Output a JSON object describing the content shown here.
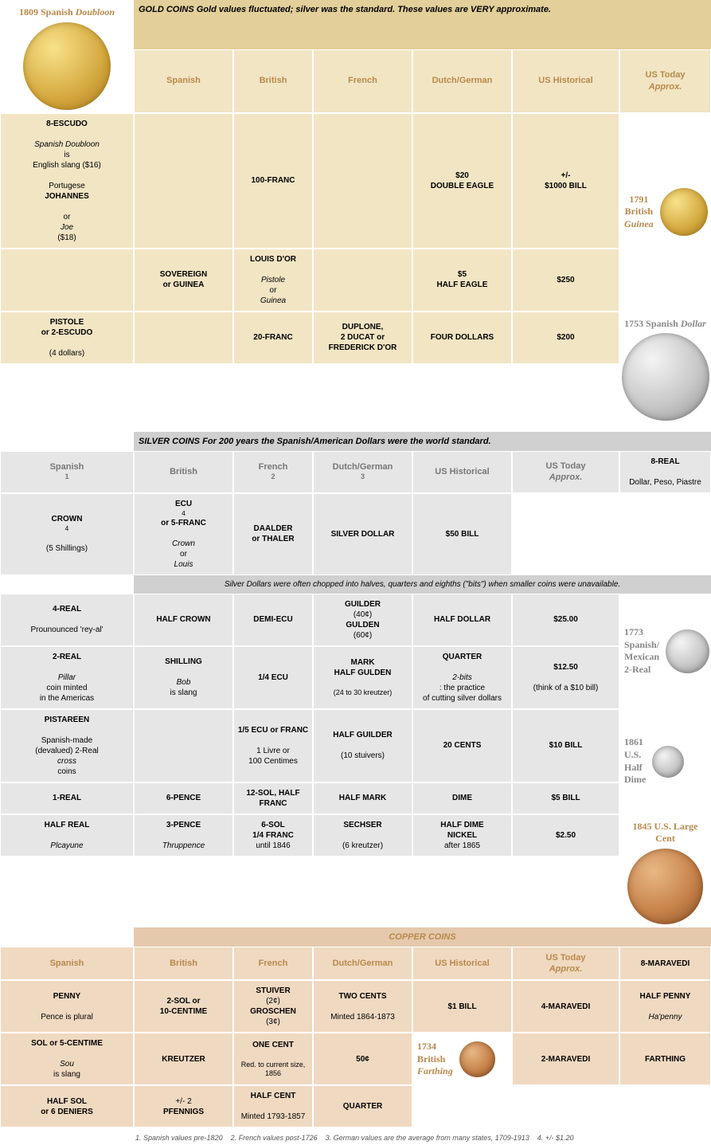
{
  "cols": [
    "Spanish",
    "British",
    "French",
    "Dutch/German",
    "US Historical",
    "US Today <span class='i'>Approx.</span>"
  ],
  "gold": {
    "title": "<span class='b'>GOLD COINS</span> <span class='i'>Gold values fluctuated; silver was the standard. These values are VERY approximate.</span>",
    "coins": [
      {
        "label": "1809 Spanish <span class='ital'>Doubloon</span>",
        "size": 110,
        "cls": "gold-coin"
      },
      {
        "label": "1791<br>British<br><span class='ital'>Guinea</span>",
        "size": 60,
        "cls": "gold-coin"
      }
    ],
    "rows": [
      [
        "<span class='b'>8-ESCUDO</span><br><span class='i'>Spanish Doubloon</span> is<br>English slang ($16)<br><br>Portugese <span class='b'>JOHANNES</span><br>or <span class='i'>Joe</span> ($18)",
        "",
        "<span class='b'>100-FRANC</span>",
        "",
        "<span class='b'>$20<br>DOUBLE EAGLE</span>",
        "<span class='b'>+/-<br>$1000 BILL</span>"
      ],
      [
        "",
        "<span class='b'>SOVEREIGN<br>or GUINEA</span>",
        "<span class='b'>LOUIS D'OR</span><br><span class='i'>Pistole</span> or <span class='i'>Guinea</span>",
        "",
        "<span class='b'>$5<br>HALF EAGLE</span>",
        "<span class='b'>$250</span>"
      ],
      [
        "<span class='b'>PISTOLE<br>or 2-ESCUDO</span><br>(4 dollars)",
        "",
        "<span class='b'>20-FRANC</span>",
        "<span class='b'>DUPLONE,<br>2 DUCAT or<br>FREDERICK D'OR</span>",
        "<span class='b'>FOUR DOLLARS</span>",
        "<span class='b'>$200</span>"
      ]
    ]
  },
  "silver": {
    "title": "<span class='b'>SILVER COINS</span> <span class='i'>For 200 years the Spanish/American Dollars were the world standard.</span>",
    "cols": [
      "Spanish<sup>1</sup>",
      "British",
      "French<sup>2</sup>",
      "Dutch/German<sup>3</sup>",
      "US Historical",
      "US Today <span class='i'>Approx.</span>"
    ],
    "note": "Silver Dollars were often chopped into halves, quarters and eighths (\"bits\") when smaller coins were unavailable.",
    "coins": [
      {
        "label": "1753 Spanish <span class='ital'>Dollar</span>",
        "size": 110,
        "cls": "silver-coin"
      },
      {
        "label": "1773<br>Spanish/<br>Mexican<br>2-Real",
        "size": 55,
        "cls": "silver-coin",
        "side": true
      },
      {
        "label": "1861<br>U.S.<br>Half<br>Dime",
        "size": 40,
        "cls": "silver-coin",
        "side": true
      }
    ],
    "rows": [
      [
        "<span class='b'>8-REAL</span><br>Dollar, Peso, Piastre",
        "<span class='b'>CROWN</span><sup>4</sup><br>(5 Shillings)",
        "<span class='b'>ECU</span><sup>4</sup> <span class='b'>or 5-FRANC</span><br><span class='i'>Crown</span> or <span class='i'>Louis</span>",
        "<span class='b'>DAALDER<br>or THALER</span>",
        "<span class='b'>SILVER DOLLAR</span>",
        "<span class='b'>$50 BILL</span>"
      ],
      [
        "<span class='b'>4-REAL</span><br>Prounounced 'rey-al'",
        "<span class='b'>HALF CROWN</span>",
        "<span class='b'>DEMI-ECU</span>",
        "<span class='b'>GUILDER</span> (40¢)<br><span class='b'>GULDEN</span> (60¢)",
        "<span class='b'>HALF DOLLAR</span>",
        "<span class='b'>$25.00</span>"
      ],
      [
        "<span class='b'>2-REAL</span><br><span class='i'>Pillar</span> coin minted<br>in the Americas",
        "<span class='b'>SHILLING</span><br><span class='i'>Bob</span> is slang",
        "<span class='b'>1/4 ECU</span>",
        "<span class='b'>MARK<br>HALF GULDEN</span><br><span class='small'>(24 to 30 kreutzer)</span>",
        "<span class='b'>QUARTER</span><br><span class='i'>2-bits</span>: the practice<br>of cutting silver dollars",
        "<span class='b'>$12.50</span><br>(think of a $10 bill)"
      ],
      [
        "<span class='b'>PISTAREEN</span><br>Spanish-made<br>(devalued) 2-Real<br><span class='i'>cross</span> coins",
        "",
        "<span class='b'>1/5 ECU or FRANC</span><br>1 Livre or<br>100 Centimes",
        "<span class='b'>HALF GUILDER</span><br>(10 stuivers)",
        "<span class='b'>20 CENTS</span>",
        "<span class='b'>$10 BILL</span>"
      ],
      [
        "<span class='b'>1-REAL</span>",
        "<span class='b'>6-PENCE</span>",
        "<span class='b'>12-SOL, HALF FRANC</span>",
        "<span class='b'>HALF MARK</span>",
        "<span class='b'>DIME</span>",
        "<span class='b'>$5 BILL</span>"
      ],
      [
        "<span class='b'>HALF REAL</span><br><span class='i'>Plcayune</span>",
        "<span class='b'>3-PENCE</span><br><span class='i'>Thruppence</span>",
        "<span class='b'>6-SOL<br>1/4 FRANC</span> until 1846",
        "<span class='b'>SECHSER</span><br>(6 kreutzer)",
        "<span class='b'>HALF DIME<br>NICKEL</span> after 1865",
        "<span class='b'>$2.50</span>"
      ]
    ]
  },
  "copper": {
    "title": "<span class='b'>COPPER COINS</span>",
    "coins": [
      {
        "label": "1845 U.S. Large Cent",
        "size": 95,
        "cls": "copper-coin"
      },
      {
        "label": "1734<br>British<br><span class='ital'>Farthing</span>",
        "size": 45,
        "cls": "copper-coin",
        "side": true
      }
    ],
    "rows": [
      [
        "<span class='b'>8-MARAVEDI</span>",
        "<span class='b'>PENNY</span><br>Pence is plural",
        "<span class='b'>2-SOL or<br>10-CENTIME</span>",
        "<span class='b'>STUIVER</span> (2¢)<br><span class='b'>GROSCHEN</span> (3¢)",
        "<span class='b'>TWO CENTS</span><br>Minted 1864-1873",
        "<span class='b'>$1 BILL</span>"
      ],
      [
        "<span class='b'>4-MARAVEDI</span>",
        "<span class='b'>HALF PENNY</span><br><span class='i'>Ha'penny</span>",
        "<span class='b'>SOL or 5-CENTIME</span><br><span class='i'>Sou</span> is slang",
        "<span class='b'>KREUTZER</span>",
        "<span class='b'>ONE CENT</span><br><span class='small'>Red. to current size, 1856</span>",
        "<span class='b'>50¢</span>"
      ],
      [
        "<span class='b'>2-MARAVEDI</span>",
        "<span class='b'>FARTHING</span>",
        "<span class='b'>HALF SOL<br>or 6 DENIERS</span>",
        "+/- 2<br><span class='b'>PFENNIGS</span>",
        "<span class='b'>HALF CENT</span><br>Minted 1793-1857",
        "<span class='b'>QUARTER</span>"
      ]
    ]
  },
  "footnotes": "1. Spanish values pre-1820 &nbsp;&nbsp; 2. French values post-1726 &nbsp;&nbsp; 3. German values are the average from many states, 1709-1913 &nbsp;&nbsp; 4. +/- $1.20"
}
